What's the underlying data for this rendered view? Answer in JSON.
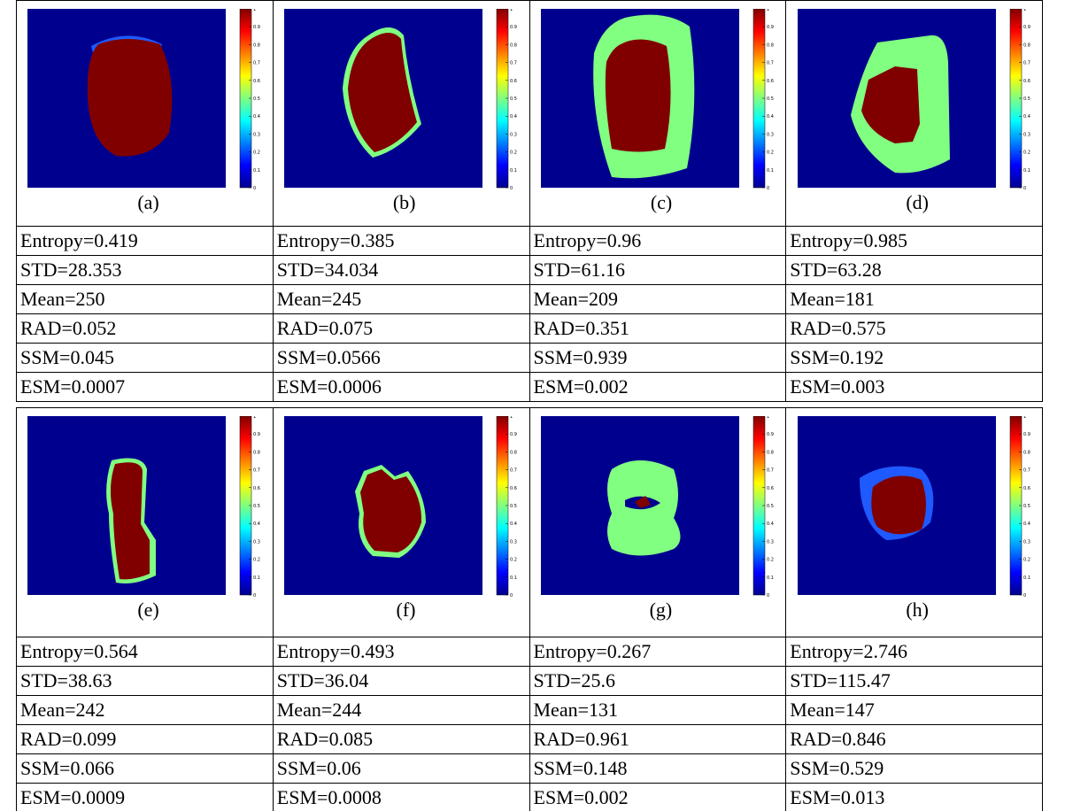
{
  "colorbar_ticks": [
    "0",
    "0.1",
    "0.2",
    "0.3",
    "0.4",
    "0.5",
    "0.6",
    "0.7",
    "0.8",
    "0.9",
    "1"
  ],
  "blocks": [
    {
      "captions": [
        "(a)",
        "(b)",
        "(c)",
        "(d)"
      ],
      "rows": [
        [
          "Entropy=0.419",
          "Entropy=0.385",
          "Entropy=0.96",
          "Entropy=0.985"
        ],
        [
          "STD=28.353",
          "STD=34.034",
          "STD=61.16",
          "STD=63.28"
        ],
        [
          "Mean=250",
          "Mean=245",
          "Mean=209",
          "Mean=181"
        ],
        [
          "RAD=0.052",
          "RAD=0.075",
          "RAD=0.351",
          "RAD=0.575"
        ],
        [
          "SSM=0.045",
          "SSM=0.0566",
          "SSM=0.939",
          "SSM=0.192"
        ],
        [
          "ESM=0.0007",
          "ESM=0.0006",
          "ESM=0.002",
          "ESM=0.003"
        ]
      ]
    },
    {
      "captions": [
        "(e)",
        "(f)",
        "(g)",
        "(h)"
      ],
      "rows": [
        [
          "Entropy=0.564",
          "Entropy=0.493",
          "Entropy=0.267",
          "Entropy=2.746"
        ],
        [
          "STD=38.63",
          "STD=36.04",
          "STD=25.6",
          "STD=115.47"
        ],
        [
          "Mean=242",
          "Mean=244",
          "Mean=131",
          "Mean=147"
        ],
        [
          "RAD=0.099",
          "RAD=0.085",
          "RAD=0.961",
          "RAD=0.846"
        ],
        [
          "SSM=0.066",
          "SSM=0.06",
          "SSM=0.148",
          "SSM=0.529"
        ],
        [
          "ESM=0.0009",
          "ESM=0.0008",
          "ESM=0.002",
          "ESM=0.013"
        ]
      ]
    }
  ]
}
